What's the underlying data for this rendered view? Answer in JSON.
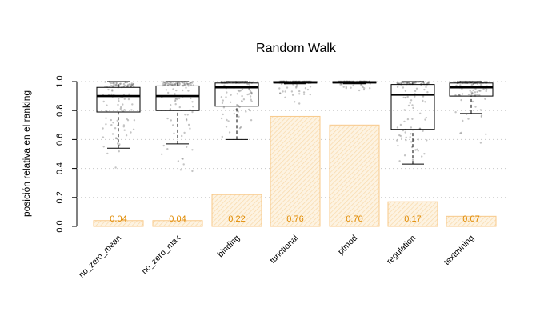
{
  "chart_data": {
    "type": "bar",
    "title": "Random Walk",
    "xlabel": "",
    "ylabel": "posición relativa en el ranking",
    "ylim": [
      0,
      1.0
    ],
    "yticks": [
      "0.0",
      "0.2",
      "0.4",
      "0.6",
      "0.8",
      "1.0"
    ],
    "grid": true,
    "reference_line": 0.5,
    "categories": [
      "no_zero_mean",
      "no_zero_max",
      "binding",
      "functional",
      "ptmod",
      "regulation",
      "textmining"
    ],
    "series": [
      {
        "kind": "bar",
        "values": [
          0.04,
          0.04,
          0.22,
          0.76,
          0.7,
          0.17,
          0.07
        ],
        "value_labels": [
          "0.04",
          "0.04",
          "0.22",
          "0.76",
          "0.70",
          "0.17",
          "0.07"
        ],
        "color": "#f5a623"
      },
      {
        "kind": "boxplot",
        "color": "#000000",
        "boxes": [
          {
            "whisker_low": 0.54,
            "q1": 0.79,
            "median": 0.9,
            "q3": 0.96,
            "whisker_high": 1.0,
            "min": 0.35
          },
          {
            "whisker_low": 0.57,
            "q1": 0.8,
            "median": 0.9,
            "q3": 0.97,
            "whisker_high": 1.0,
            "min": 0.35
          },
          {
            "whisker_low": 0.6,
            "q1": 0.83,
            "median": 0.96,
            "q3": 0.99,
            "whisker_high": 1.0,
            "min": 0.6
          },
          {
            "whisker_low": 0.985,
            "q1": 0.99,
            "median": 0.995,
            "q3": 1.0,
            "whisker_high": 1.0,
            "min": 0.84
          },
          {
            "whisker_low": 0.985,
            "q1": 0.99,
            "median": 0.995,
            "q3": 1.0,
            "whisker_high": 1.0,
            "min": 0.92
          },
          {
            "whisker_low": 0.43,
            "q1": 0.67,
            "median": 0.91,
            "q3": 0.98,
            "whisker_high": 1.0,
            "min": 0.43
          },
          {
            "whisker_low": 0.78,
            "q1": 0.9,
            "median": 0.96,
            "q3": 0.99,
            "whisker_high": 1.0,
            "min": 0.55
          }
        ]
      }
    ]
  }
}
